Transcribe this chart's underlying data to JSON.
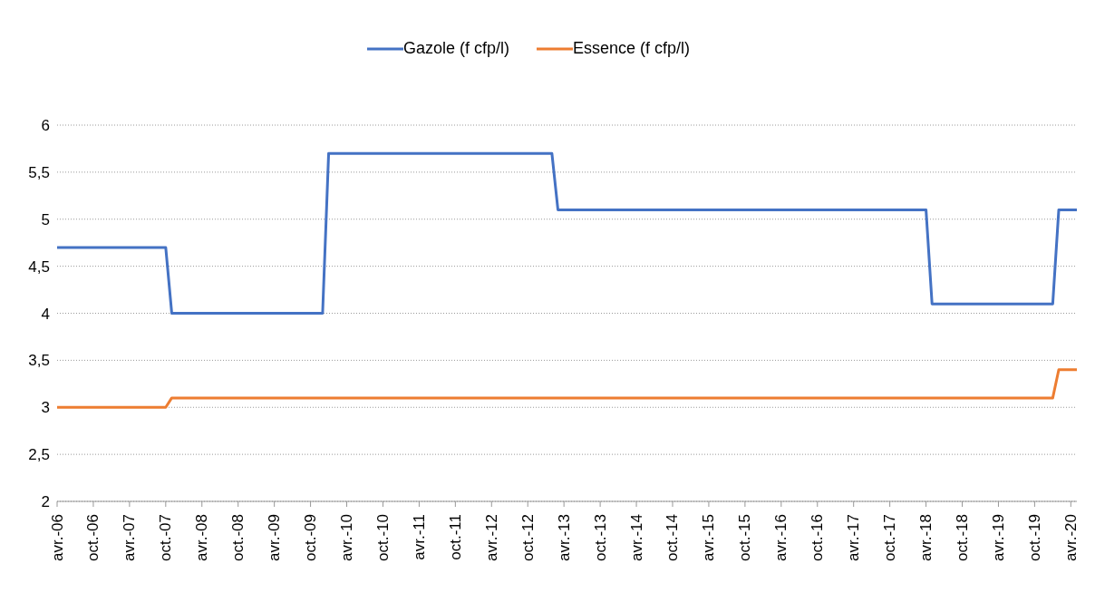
{
  "chart_data": {
    "type": "line",
    "series": [
      {
        "name": "Gazole (f cfp/l)",
        "color": "#4472c4",
        "x": [
          "2006-04",
          "2007-10",
          "2007-11",
          "2009-12",
          "2010-01",
          "2013-02",
          "2013-03",
          "2018-04",
          "2018-05",
          "2020-01",
          "2020-02",
          "2020-05"
        ],
        "values": [
          4.7,
          4.7,
          4.0,
          4.0,
          5.7,
          5.7,
          5.1,
          5.1,
          4.1,
          4.1,
          5.1,
          5.1
        ]
      },
      {
        "name": "Essence (f cfp/l)",
        "color": "#ed7d31",
        "x": [
          "2006-04",
          "2007-10",
          "2007-11",
          "2020-01",
          "2020-02",
          "2020-05"
        ],
        "values": [
          3.0,
          3.0,
          3.1,
          3.1,
          3.4,
          3.4
        ]
      }
    ],
    "xlim": [
      "2006-04",
      "2020-05"
    ],
    "xticks": [
      {
        "value": "2006-04",
        "label": "avr.-06"
      },
      {
        "value": "2006-10",
        "label": "oct.-06"
      },
      {
        "value": "2007-04",
        "label": "avr.-07"
      },
      {
        "value": "2007-10",
        "label": "oct.-07"
      },
      {
        "value": "2008-04",
        "label": "avr.-08"
      },
      {
        "value": "2008-10",
        "label": "oct.-08"
      },
      {
        "value": "2009-04",
        "label": "avr.-09"
      },
      {
        "value": "2009-10",
        "label": "oct.-09"
      },
      {
        "value": "2010-04",
        "label": "avr.-10"
      },
      {
        "value": "2010-10",
        "label": "oct.-10"
      },
      {
        "value": "2011-04",
        "label": "avr.-11"
      },
      {
        "value": "2011-10",
        "label": "oct.-11"
      },
      {
        "value": "2012-04",
        "label": "avr.-12"
      },
      {
        "value": "2012-10",
        "label": "oct.-12"
      },
      {
        "value": "2013-04",
        "label": "avr.-13"
      },
      {
        "value": "2013-10",
        "label": "oct.-13"
      },
      {
        "value": "2014-04",
        "label": "avr.-14"
      },
      {
        "value": "2014-10",
        "label": "oct.-14"
      },
      {
        "value": "2015-04",
        "label": "avr.-15"
      },
      {
        "value": "2015-10",
        "label": "oct.-15"
      },
      {
        "value": "2016-04",
        "label": "avr.-16"
      },
      {
        "value": "2016-10",
        "label": "oct.-16"
      },
      {
        "value": "2017-04",
        "label": "avr.-17"
      },
      {
        "value": "2017-10",
        "label": "oct.-17"
      },
      {
        "value": "2018-04",
        "label": "avr.-18"
      },
      {
        "value": "2018-10",
        "label": "oct.-18"
      },
      {
        "value": "2019-04",
        "label": "avr.-19"
      },
      {
        "value": "2019-10",
        "label": "oct.-19"
      },
      {
        "value": "2020-04",
        "label": "avr.-20"
      }
    ],
    "ylim": [
      2,
      6
    ],
    "yticks": [
      2,
      {
        "value": 2.5,
        "label": "2,5"
      },
      3,
      {
        "value": 3.5,
        "label": "3,5"
      },
      4,
      {
        "value": 4.5,
        "label": "4,5"
      },
      5,
      {
        "value": 5.5,
        "label": "5,5"
      },
      6
    ],
    "grid": "y",
    "legend": "top",
    "marker": "none",
    "line_style": "solid"
  }
}
